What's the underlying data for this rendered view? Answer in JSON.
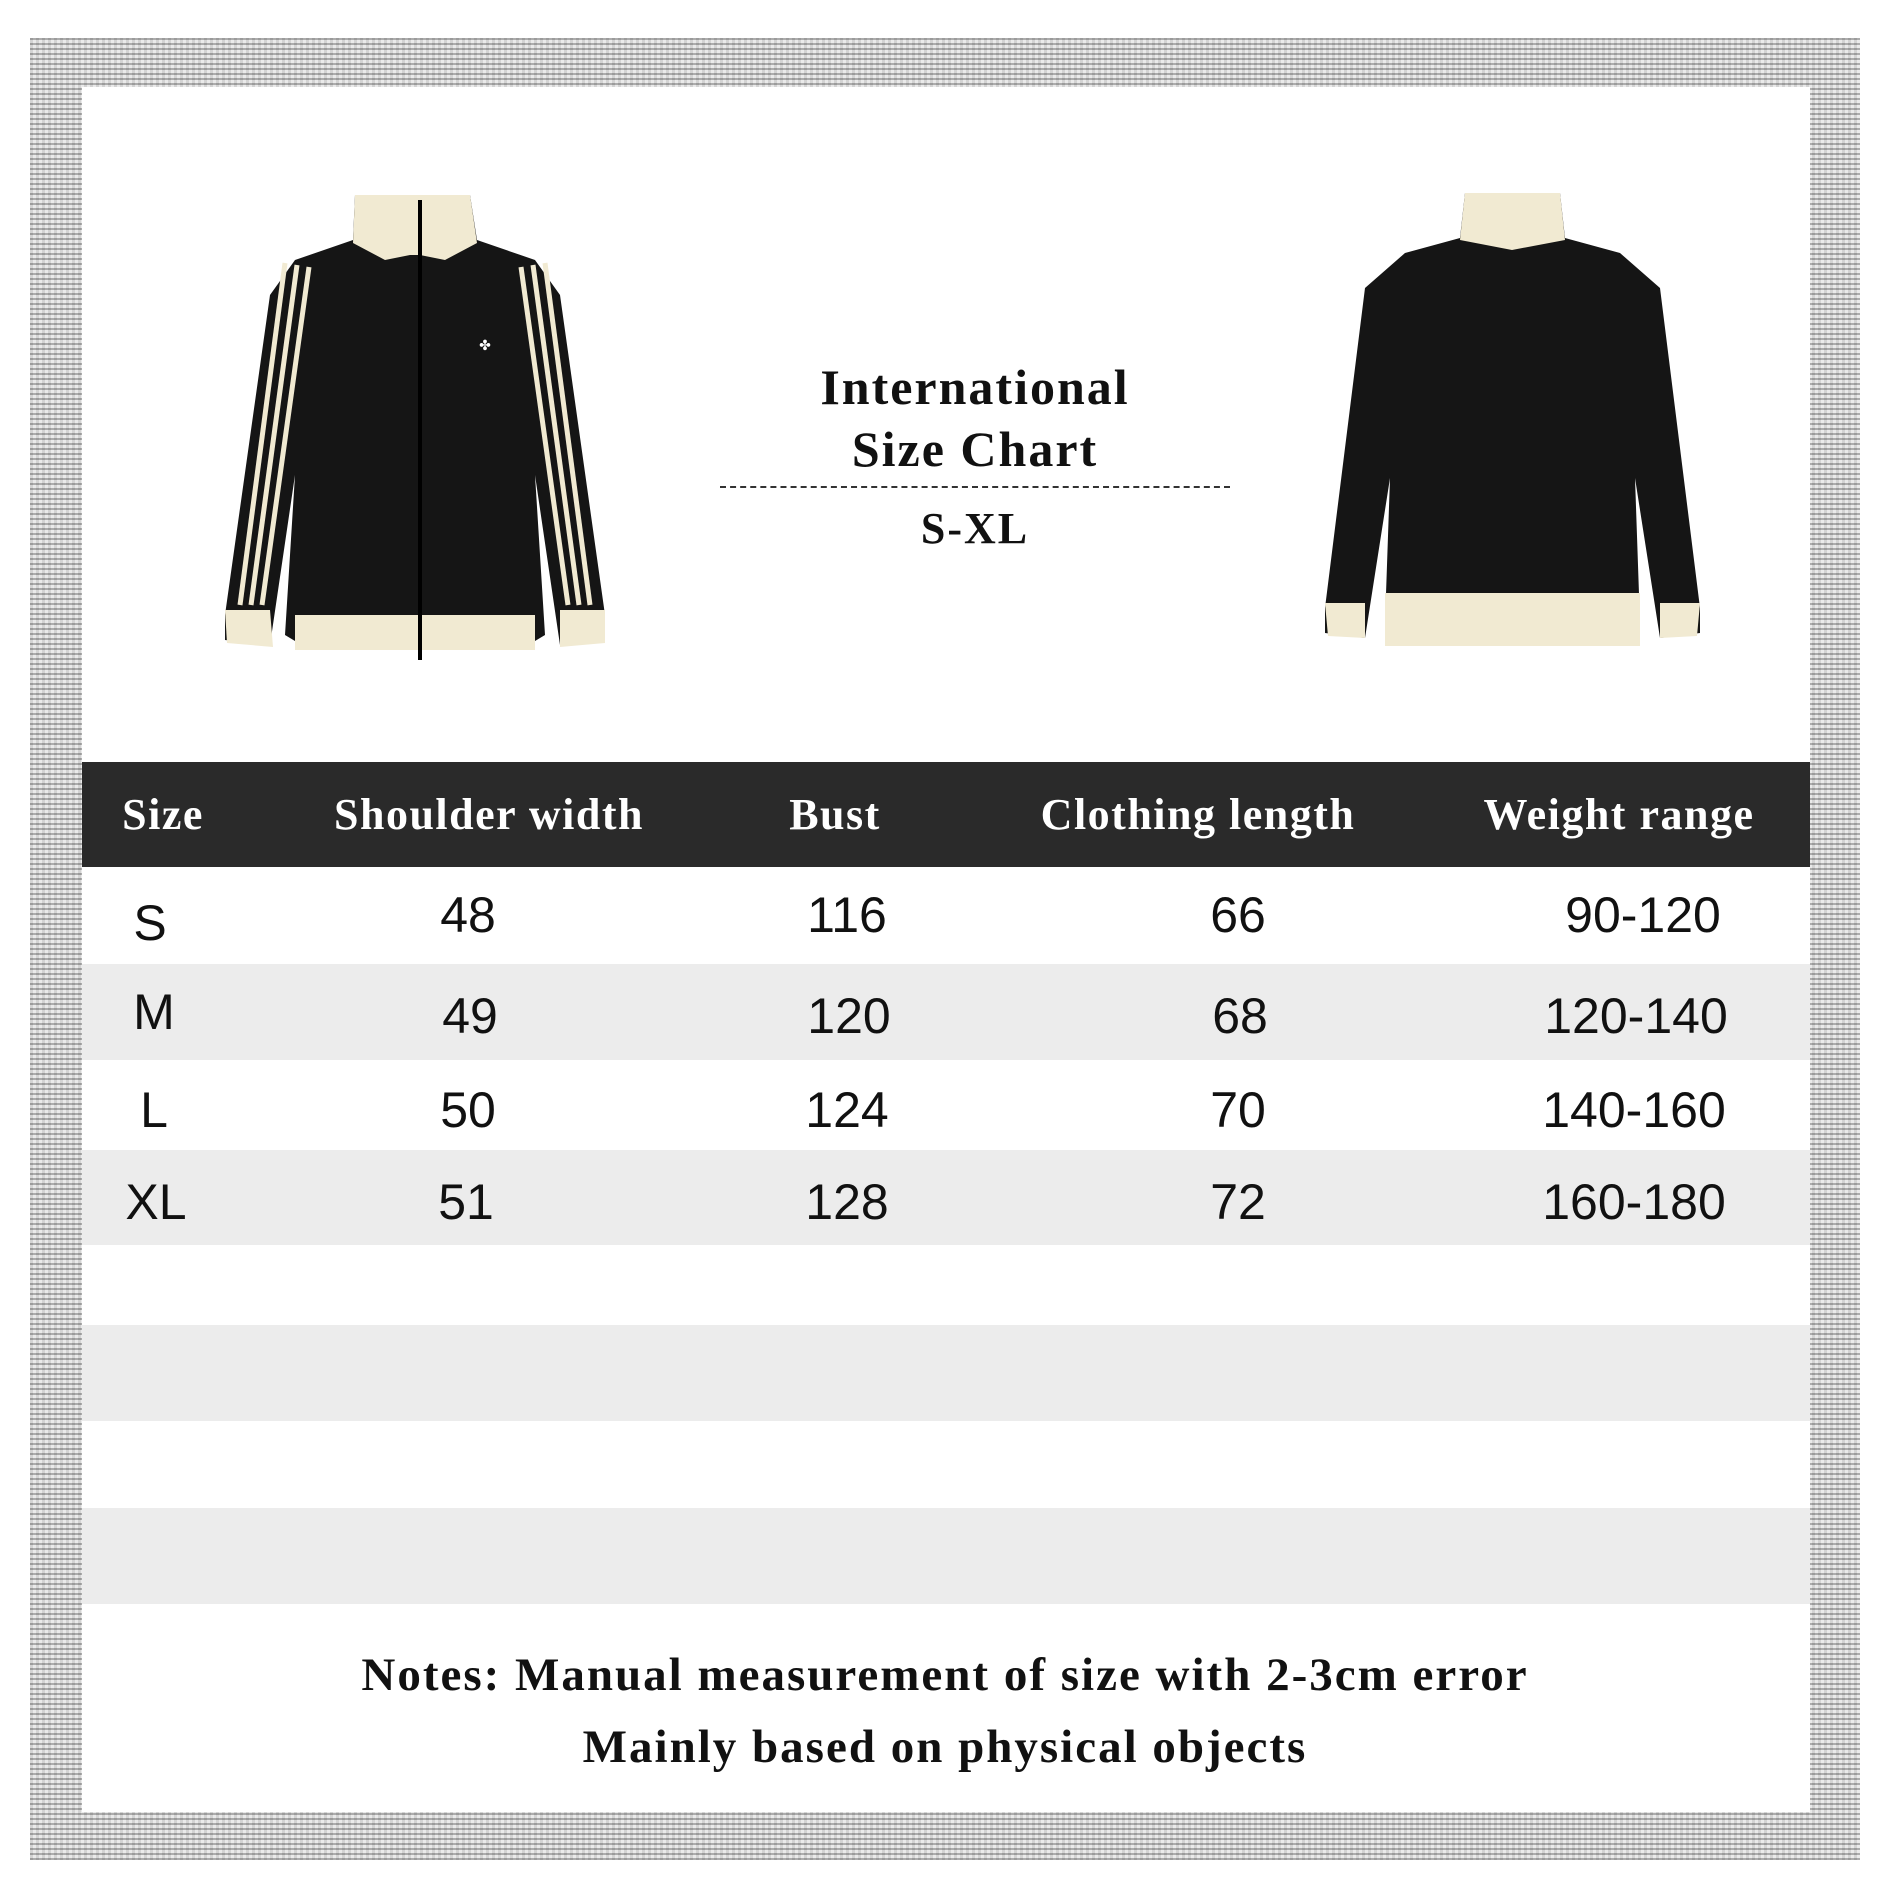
{
  "title": {
    "line1": "International",
    "line2": "Size Chart",
    "range": "S-XL"
  },
  "table": {
    "headers": [
      "Size",
      "Shoulder width",
      "Bust",
      "Clothing length",
      "Weight range"
    ],
    "rows": [
      [
        "S",
        "48",
        "116",
        "66",
        "90-120"
      ],
      [
        "M",
        "49",
        "120",
        "68",
        "120-140"
      ],
      [
        "L",
        "50",
        "124",
        "70",
        "140-160"
      ],
      [
        "XL",
        "51",
        "128",
        "72",
        "160-180"
      ]
    ]
  },
  "notes": {
    "line1": "Notes:  Manual measurement of size with 2-3cm error",
    "line2": "Mainly based on physical objects"
  },
  "colors": {
    "header_bg": "#2a2a2a",
    "stripe_row": "#ececec",
    "jacket_body": "#151515",
    "jacket_trim": "#f1ead2"
  }
}
